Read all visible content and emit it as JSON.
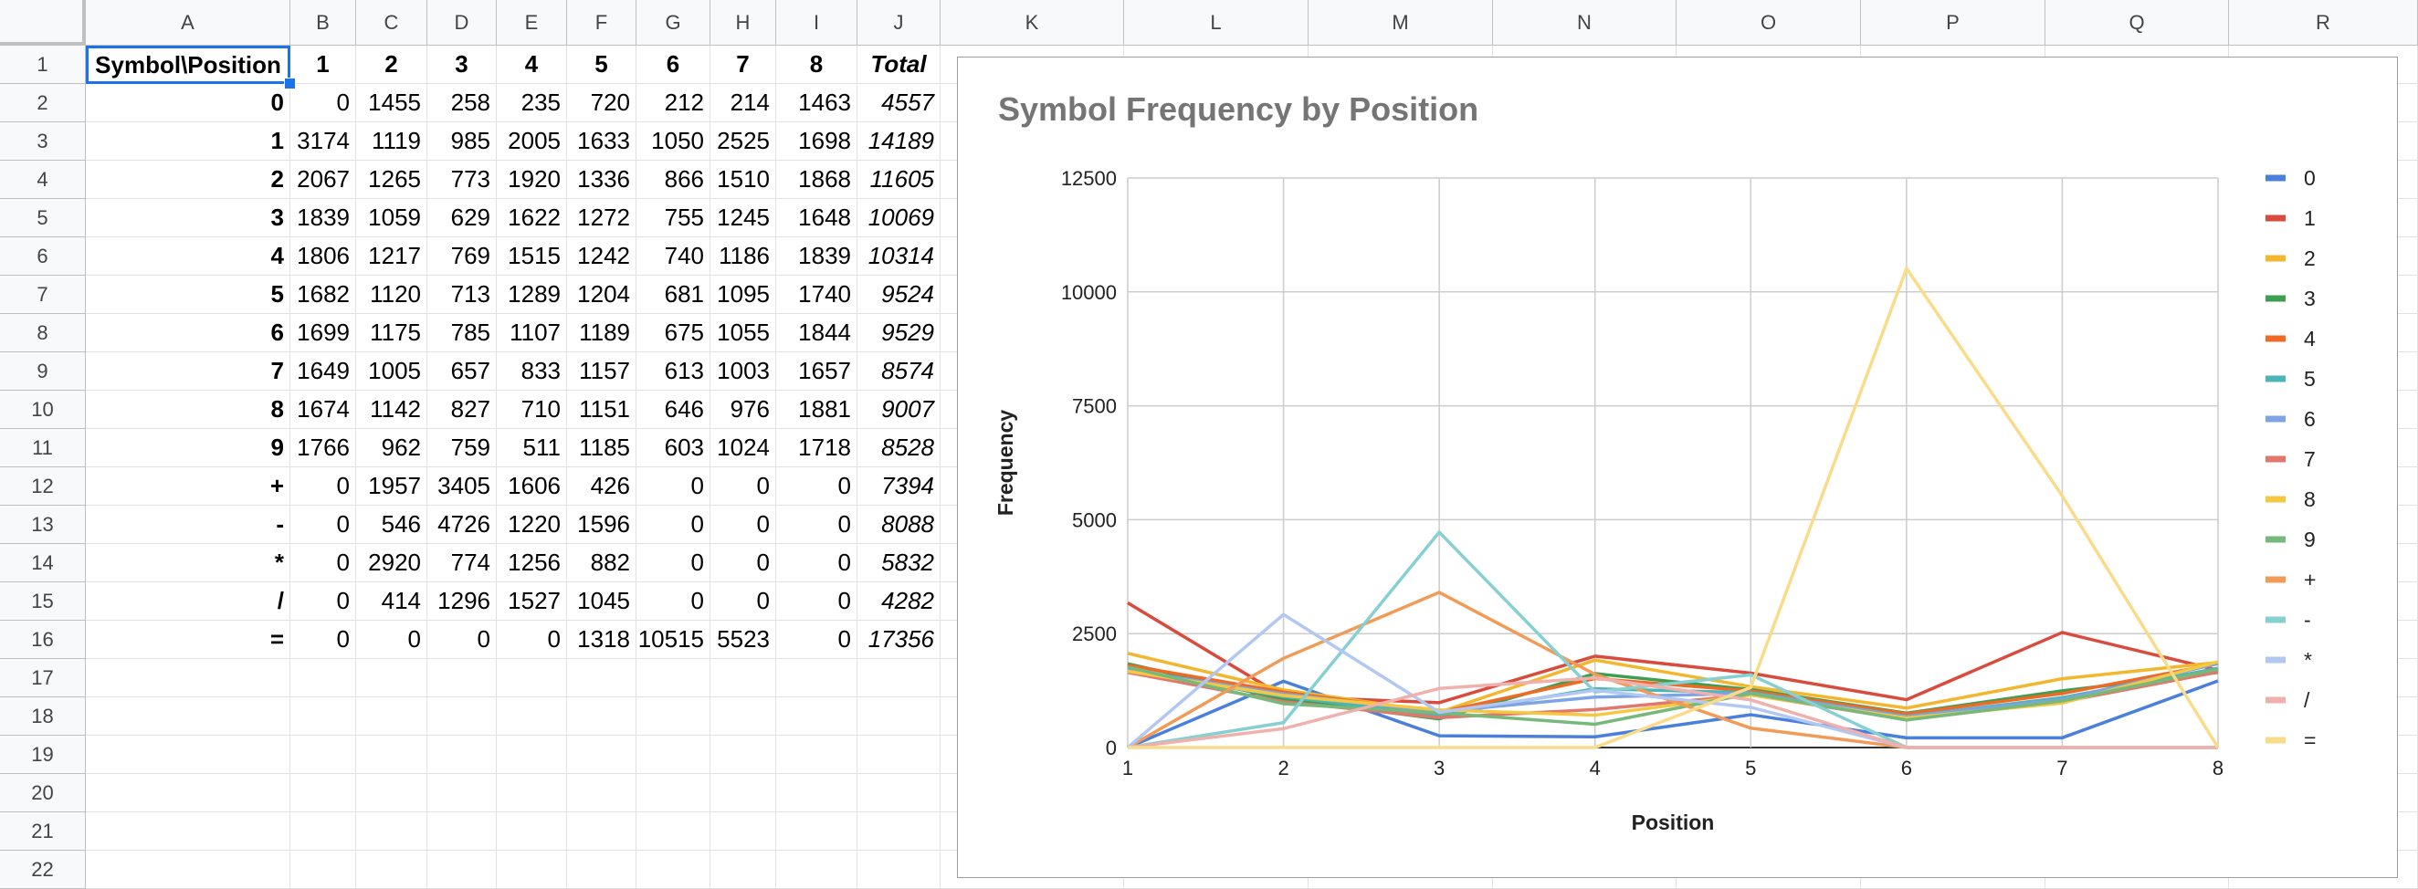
{
  "columns": [
    "A",
    "B",
    "C",
    "D",
    "E",
    "F",
    "G",
    "H",
    "I",
    "J",
    "K",
    "L",
    "M",
    "N",
    "O",
    "P",
    "Q",
    "R"
  ],
  "rows": [
    "1",
    "2",
    "3",
    "4",
    "5",
    "6",
    "7",
    "8",
    "9",
    "10",
    "11",
    "12",
    "13",
    "14",
    "15",
    "16",
    "17",
    "18",
    "19",
    "20",
    "21",
    "22"
  ],
  "header_row": [
    "Symbol\\Position",
    "1",
    "2",
    "3",
    "4",
    "5",
    "6",
    "7",
    "8",
    "Total"
  ],
  "table": [
    [
      "0",
      "0",
      "1455",
      "258",
      "235",
      "720",
      "212",
      "214",
      "1463",
      "4557"
    ],
    [
      "1",
      "3174",
      "1119",
      "985",
      "2005",
      "1633",
      "1050",
      "2525",
      "1698",
      "14189"
    ],
    [
      "2",
      "2067",
      "1265",
      "773",
      "1920",
      "1336",
      "866",
      "1510",
      "1868",
      "11605"
    ],
    [
      "3",
      "1839",
      "1059",
      "629",
      "1622",
      "1272",
      "755",
      "1245",
      "1648",
      "10069"
    ],
    [
      "4",
      "1806",
      "1217",
      "769",
      "1515",
      "1242",
      "740",
      "1186",
      "1839",
      "10314"
    ],
    [
      "5",
      "1682",
      "1120",
      "713",
      "1289",
      "1204",
      "681",
      "1095",
      "1740",
      "9524"
    ],
    [
      "6",
      "1699",
      "1175",
      "785",
      "1107",
      "1189",
      "675",
      "1055",
      "1844",
      "9529"
    ],
    [
      "7",
      "1649",
      "1005",
      "657",
      "833",
      "1157",
      "613",
      "1003",
      "1657",
      "8574"
    ],
    [
      "8",
      "1674",
      "1142",
      "827",
      "710",
      "1151",
      "646",
      "976",
      "1881",
      "9007"
    ],
    [
      "9",
      "1766",
      "962",
      "759",
      "511",
      "1185",
      "603",
      "1024",
      "1718",
      "8528"
    ],
    [
      "+",
      "0",
      "1957",
      "3405",
      "1606",
      "426",
      "0",
      "0",
      "0",
      "7394"
    ],
    [
      "-",
      "0",
      "546",
      "4726",
      "1220",
      "1596",
      "0",
      "0",
      "0",
      "8088"
    ],
    [
      "*",
      "0",
      "2920",
      "774",
      "1256",
      "882",
      "0",
      "0",
      "0",
      "5832"
    ],
    [
      "/",
      "0",
      "414",
      "1296",
      "1527",
      "1045",
      "0",
      "0",
      "0",
      "4282"
    ],
    [
      "=",
      "0",
      "0",
      "0",
      "0",
      "1318",
      "10515",
      "5523",
      "0",
      "17356"
    ]
  ],
  "chart_data": {
    "type": "line",
    "title": "Symbol Frequency by Position",
    "xlabel": "Position",
    "ylabel": "Frequency",
    "x": [
      1,
      2,
      3,
      4,
      5,
      6,
      7,
      8
    ],
    "ylim": [
      0,
      12500
    ],
    "yticks": [
      0,
      2500,
      5000,
      7500,
      10000,
      12500
    ],
    "grid": true,
    "legend_position": "right",
    "series": [
      {
        "name": "0",
        "color": "#4a7fdc",
        "values": [
          0,
          1455,
          258,
          235,
          720,
          212,
          214,
          1463
        ]
      },
      {
        "name": "1",
        "color": "#d94b3c",
        "values": [
          3174,
          1119,
          985,
          2005,
          1633,
          1050,
          2525,
          1698
        ]
      },
      {
        "name": "2",
        "color": "#f2b72c",
        "values": [
          2067,
          1265,
          773,
          1920,
          1336,
          866,
          1510,
          1868
        ]
      },
      {
        "name": "3",
        "color": "#3e9e52",
        "values": [
          1839,
          1059,
          629,
          1622,
          1272,
          755,
          1245,
          1648
        ]
      },
      {
        "name": "4",
        "color": "#f06a26",
        "values": [
          1806,
          1217,
          769,
          1515,
          1242,
          740,
          1186,
          1839
        ]
      },
      {
        "name": "5",
        "color": "#4bb5b8",
        "values": [
          1682,
          1120,
          713,
          1289,
          1204,
          681,
          1095,
          1740
        ]
      },
      {
        "name": "6",
        "color": "#7ea4e6",
        "values": [
          1699,
          1175,
          785,
          1107,
          1189,
          675,
          1055,
          1844
        ]
      },
      {
        "name": "7",
        "color": "#e2776c",
        "values": [
          1649,
          1005,
          657,
          833,
          1157,
          613,
          1003,
          1657
        ]
      },
      {
        "name": "8",
        "color": "#f5c842",
        "values": [
          1674,
          1142,
          827,
          710,
          1151,
          646,
          976,
          1881
        ]
      },
      {
        "name": "9",
        "color": "#76b97a",
        "values": [
          1766,
          962,
          759,
          511,
          1185,
          603,
          1024,
          1718
        ]
      },
      {
        "name": "+",
        "color": "#f29b58",
        "values": [
          0,
          1957,
          3405,
          1606,
          426,
          0,
          0,
          0
        ]
      },
      {
        "name": "-",
        "color": "#86d0d1",
        "values": [
          0,
          546,
          4726,
          1220,
          1596,
          0,
          0,
          0
        ]
      },
      {
        "name": "*",
        "color": "#b2c8f2",
        "values": [
          0,
          2920,
          774,
          1256,
          882,
          0,
          0,
          0
        ]
      },
      {
        "name": "/",
        "color": "#f0b0ab",
        "values": [
          0,
          414,
          1296,
          1527,
          1045,
          0,
          0,
          0
        ]
      },
      {
        "name": "=",
        "color": "#f9dc8a",
        "values": [
          0,
          0,
          0,
          0,
          1318,
          10515,
          5523,
          0
        ]
      }
    ]
  }
}
